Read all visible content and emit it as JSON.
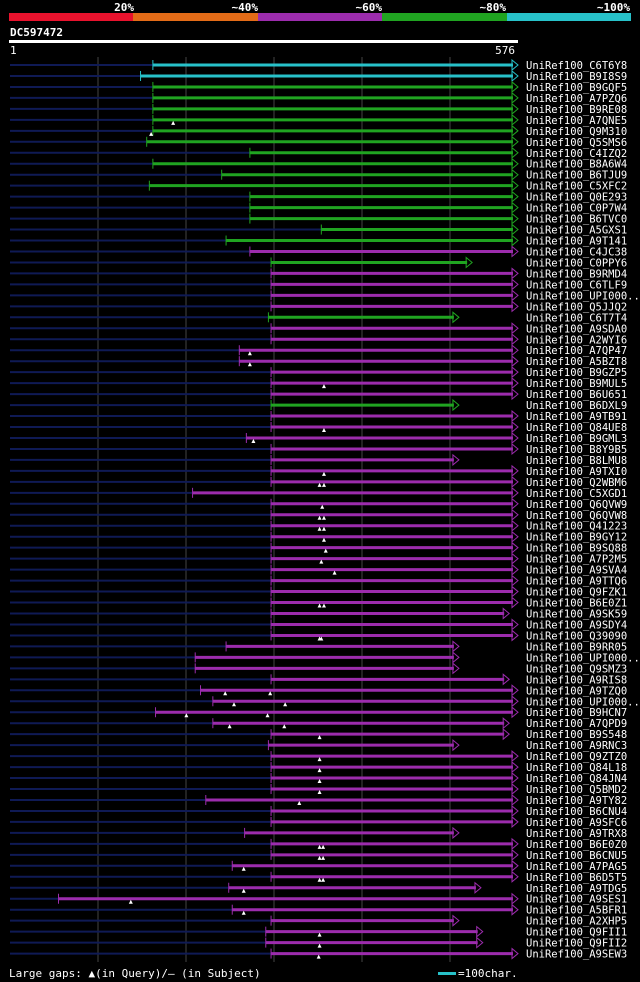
{
  "legend": {
    "colors": [
      "#e8122d",
      "#e36b17",
      "#9c2cad",
      "#20a421",
      "#27c1c9"
    ],
    "labels": [
      "20%",
      "~40%",
      "~60%",
      "~80%",
      "~100%"
    ]
  },
  "query": {
    "id": "DC597472",
    "start_label": "1",
    "end_label": "576"
  },
  "footer": {
    "gaps_text": "Large gaps: ▲(in Query)/— (in Subject)",
    "scale_text": "=100char."
  },
  "chart_data": {
    "type": "alignment",
    "query_length": 576,
    "colors": {
      "cyan": "#27c1c9",
      "green": "#20a421",
      "purple": "#9c2cad",
      "subject": "#0f1a55"
    },
    "hits": [
      {
        "name": "UniRef100_C6T6Y8",
        "color": "cyan",
        "q": [
          162,
          576
        ],
        "s0": 0,
        "qgaps": []
      },
      {
        "name": "UniRef100_B9I8S9",
        "color": "cyan",
        "q": [
          148,
          576
        ],
        "s0": 0,
        "qgaps": []
      },
      {
        "name": "UniRef100_B9GQF5",
        "color": "green",
        "q": [
          162,
          576
        ],
        "s0": 0,
        "qgaps": []
      },
      {
        "name": "UniRef100_A7PZQ6",
        "color": "green",
        "q": [
          162,
          576
        ],
        "s0": 0,
        "qgaps": []
      },
      {
        "name": "UniRef100_B9RE08",
        "color": "green",
        "q": [
          162,
          576
        ],
        "s0": 0,
        "qgaps": []
      },
      {
        "name": "UniRef100_A7QNE5",
        "color": "green",
        "q": [
          162,
          576
        ],
        "s0": 0,
        "qgaps": [
          185
        ]
      },
      {
        "name": "UniRef100_Q9M310",
        "color": "green",
        "q": [
          162,
          576
        ],
        "s0": 0,
        "qgaps": [
          160
        ]
      },
      {
        "name": "UniRef100_Q5SMS6",
        "color": "green",
        "q": [
          155,
          576
        ],
        "s0": 0,
        "qgaps": []
      },
      {
        "name": "UniRef100_C4IZQ2",
        "color": "green",
        "q": [
          272,
          576
        ],
        "s0": 0,
        "qgaps": []
      },
      {
        "name": "UniRef100_B8A6W4",
        "color": "green",
        "q": [
          162,
          576
        ],
        "s0": 0,
        "qgaps": []
      },
      {
        "name": "UniRef100_B6TJU9",
        "color": "green",
        "q": [
          240,
          576
        ],
        "s0": 0,
        "qgaps": []
      },
      {
        "name": "UniRef100_C5XFC2",
        "color": "green",
        "q": [
          158,
          576
        ],
        "s0": 0,
        "qgaps": []
      },
      {
        "name": "UniRef100_Q0E293",
        "color": "green",
        "q": [
          272,
          576
        ],
        "s0": 0,
        "qgaps": []
      },
      {
        "name": "UniRef100_C0P7W4",
        "color": "green",
        "q": [
          272,
          576
        ],
        "s0": 0,
        "qgaps": []
      },
      {
        "name": "UniRef100_B6TVC0",
        "color": "green",
        "q": [
          272,
          576
        ],
        "s0": 0,
        "qgaps": []
      },
      {
        "name": "UniRef100_A5GXS1",
        "color": "green",
        "q": [
          353,
          576
        ],
        "s0": 0,
        "qgaps": []
      },
      {
        "name": "UniRef100_A9T141",
        "color": "green",
        "q": [
          245,
          576
        ],
        "s0": 0,
        "qgaps": []
      },
      {
        "name": "UniRef100_C4JC38",
        "color": "purple",
        "q": [
          272,
          576
        ],
        "s0": 0,
        "qgaps": []
      },
      {
        "name": "UniRef100_C0PPY6",
        "color": "green",
        "q": [
          296,
          524
        ],
        "s0": 0,
        "qgaps": []
      },
      {
        "name": "UniRef100_B9RMD4",
        "color": "purple",
        "q": [
          296,
          576
        ],
        "s0": 0,
        "qgaps": []
      },
      {
        "name": "UniRef100_C6TLF9",
        "color": "purple",
        "q": [
          296,
          576
        ],
        "s0": 0,
        "qgaps": []
      },
      {
        "name": "UniRef100_UPI000..",
        "color": "purple",
        "q": [
          296,
          576
        ],
        "s0": 0,
        "qgaps": []
      },
      {
        "name": "UniRef100_Q5JJQ2",
        "color": "purple",
        "q": [
          296,
          576
        ],
        "s0": 0,
        "qgaps": []
      },
      {
        "name": "UniRef100_C6T7T4",
        "color": "green",
        "q": [
          293,
          509
        ],
        "s0": 0,
        "qgaps": []
      },
      {
        "name": "UniRef100_A9SDA0",
        "color": "purple",
        "q": [
          296,
          576
        ],
        "s0": 0,
        "qgaps": []
      },
      {
        "name": "UniRef100_A2WYI6",
        "color": "purple",
        "q": [
          296,
          576
        ],
        "s0": 0,
        "qgaps": []
      },
      {
        "name": "UniRef100_A7QP47",
        "color": "purple",
        "q": [
          260,
          576
        ],
        "s0": 0,
        "qgaps": [
          272
        ]
      },
      {
        "name": "UniRef100_A5BZT8",
        "color": "purple",
        "q": [
          260,
          576
        ],
        "s0": 0,
        "qgaps": [
          272
        ]
      },
      {
        "name": "UniRef100_B9GZP5",
        "color": "purple",
        "q": [
          296,
          576
        ],
        "s0": 0,
        "qgaps": []
      },
      {
        "name": "UniRef100_B9MUL5",
        "color": "purple",
        "q": [
          296,
          576
        ],
        "s0": 0,
        "qgaps": [
          356
        ]
      },
      {
        "name": "UniRef100_B6U651",
        "color": "purple",
        "q": [
          296,
          576
        ],
        "s0": 0,
        "qgaps": []
      },
      {
        "name": "UniRef100_B6DXL9",
        "color": "green",
        "q": [
          296,
          509
        ],
        "s0": 0,
        "qgaps": []
      },
      {
        "name": "UniRef100_A9TB91",
        "color": "purple",
        "q": [
          296,
          576
        ],
        "s0": 0,
        "qgaps": []
      },
      {
        "name": "UniRef100_Q84UE8",
        "color": "purple",
        "q": [
          296,
          576
        ],
        "s0": 0,
        "qgaps": [
          356
        ]
      },
      {
        "name": "UniRef100_B9GML3",
        "color": "purple",
        "q": [
          268,
          576
        ],
        "s0": 0,
        "qgaps": [
          276
        ]
      },
      {
        "name": "UniRef100_B8Y9B5",
        "color": "purple",
        "q": [
          296,
          576
        ],
        "s0": 0,
        "qgaps": []
      },
      {
        "name": "UniRef100_B8LMU8",
        "color": "purple",
        "q": [
          296,
          509
        ],
        "s0": 0,
        "qgaps": []
      },
      {
        "name": "UniRef100_A9TXI0",
        "color": "purple",
        "q": [
          296,
          576
        ],
        "s0": 0,
        "qgaps": [
          356
        ]
      },
      {
        "name": "UniRef100_Q2WBM6",
        "color": "purple",
        "q": [
          296,
          576
        ],
        "s0": 0,
        "qgaps": [
          351,
          356
        ]
      },
      {
        "name": "UniRef100_C5XGD1",
        "color": "purple",
        "q": [
          207,
          576
        ],
        "s0": 0,
        "qgaps": []
      },
      {
        "name": "UniRef100_Q6QVW9",
        "color": "purple",
        "q": [
          296,
          576
        ],
        "s0": 0,
        "qgaps": [
          354
        ]
      },
      {
        "name": "UniRef100_Q6QVW8",
        "color": "purple",
        "q": [
          296,
          576
        ],
        "s0": 0,
        "qgaps": [
          351,
          356
        ]
      },
      {
        "name": "UniRef100_Q41223",
        "color": "purple",
        "q": [
          296,
          576
        ],
        "s0": 0,
        "qgaps": [
          351,
          356
        ]
      },
      {
        "name": "UniRef100_B9GY12",
        "color": "purple",
        "q": [
          296,
          576
        ],
        "s0": 0,
        "qgaps": [
          356
        ]
      },
      {
        "name": "UniRef100_B9SQ88",
        "color": "purple",
        "q": [
          296,
          576
        ],
        "s0": 0,
        "qgaps": [
          358
        ]
      },
      {
        "name": "UniRef100_A7P2M5",
        "color": "purple",
        "q": [
          296,
          576
        ],
        "s0": 0,
        "qgaps": [
          353
        ]
      },
      {
        "name": "UniRef100_A9SVA4",
        "color": "purple",
        "q": [
          296,
          576
        ],
        "s0": 0,
        "qgaps": [
          368
        ]
      },
      {
        "name": "UniRef100_A9TTQ6",
        "color": "purple",
        "q": [
          296,
          576
        ],
        "s0": 0,
        "qgaps": []
      },
      {
        "name": "UniRef100_Q9FZK1",
        "color": "purple",
        "q": [
          296,
          576
        ],
        "s0": 0,
        "qgaps": []
      },
      {
        "name": "UniRef100_B6E0Z1",
        "color": "purple",
        "q": [
          296,
          576
        ],
        "s0": 0,
        "qgaps": [
          351,
          356
        ]
      },
      {
        "name": "UniRef100_A9SK59",
        "color": "purple",
        "q": [
          296,
          566
        ],
        "s0": 0,
        "qgaps": []
      },
      {
        "name": "UniRef100_A9SDY4",
        "color": "purple",
        "q": [
          296,
          576
        ],
        "s0": 0,
        "qgaps": []
      },
      {
        "name": "UniRef100_Q39090",
        "color": "purple",
        "q": [
          296,
          576
        ],
        "s0": 0,
        "qgaps": [
          351,
          353
        ]
      },
      {
        "name": "UniRef100_B9RR05",
        "color": "purple",
        "q": [
          245,
          509
        ],
        "s0": 0,
        "qgaps": []
      },
      {
        "name": "UniRef100_UPI000..",
        "color": "purple",
        "q": [
          210,
          509
        ],
        "s0": 0,
        "qgaps": []
      },
      {
        "name": "UniRef100_Q9SMZ3",
        "color": "purple",
        "q": [
          210,
          509
        ],
        "s0": 0,
        "qgaps": []
      },
      {
        "name": "UniRef100_A9RIS8",
        "color": "purple",
        "q": [
          296,
          566
        ],
        "s0": 0,
        "qgaps": []
      },
      {
        "name": "UniRef100_A9TZQ0",
        "color": "purple",
        "q": [
          216,
          576
        ],
        "s0": 0,
        "qgaps": [
          244,
          295
        ]
      },
      {
        "name": "UniRef100_UPI000..",
        "color": "purple",
        "q": [
          230,
          576
        ],
        "s0": 0,
        "qgaps": [
          254,
          312
        ]
      },
      {
        "name": "UniRef100_B9HCN7",
        "color": "purple",
        "q": [
          165,
          576
        ],
        "s0": 0,
        "qgaps": [
          200,
          292
        ]
      },
      {
        "name": "UniRef100_A7QPD9",
        "color": "purple",
        "q": [
          230,
          566
        ],
        "s0": 0,
        "qgaps": [
          249,
          311
        ]
      },
      {
        "name": "UniRef100_B9S548",
        "color": "purple",
        "q": [
          296,
          566
        ],
        "s0": 0,
        "qgaps": [
          351
        ]
      },
      {
        "name": "UniRef100_A9RNC3",
        "color": "purple",
        "q": [
          293,
          509
        ],
        "s0": 0,
        "qgaps": []
      },
      {
        "name": "UniRef100_Q9ZTZ0",
        "color": "purple",
        "q": [
          296,
          576
        ],
        "s0": 0,
        "qgaps": [
          351
        ]
      },
      {
        "name": "UniRef100_Q84L18",
        "color": "purple",
        "q": [
          296,
          576
        ],
        "s0": 0,
        "qgaps": [
          351
        ]
      },
      {
        "name": "UniRef100_Q84JN4",
        "color": "purple",
        "q": [
          296,
          576
        ],
        "s0": 0,
        "qgaps": [
          351
        ]
      },
      {
        "name": "UniRef100_Q5BMD2",
        "color": "purple",
        "q": [
          296,
          576
        ],
        "s0": 0,
        "qgaps": [
          351
        ]
      },
      {
        "name": "UniRef100_A9TY82",
        "color": "purple",
        "q": [
          222,
          576
        ],
        "s0": 0,
        "qgaps": [
          328
        ]
      },
      {
        "name": "UniRef100_B6CNU4",
        "color": "purple",
        "q": [
          296,
          576
        ],
        "s0": 0,
        "qgaps": []
      },
      {
        "name": "UniRef100_A9SFC6",
        "color": "purple",
        "q": [
          296,
          576
        ],
        "s0": 0,
        "qgaps": []
      },
      {
        "name": "UniRef100_A9TRX8",
        "color": "purple",
        "q": [
          266,
          509
        ],
        "s0": 0,
        "qgaps": []
      },
      {
        "name": "UniRef100_B6E0Z0",
        "color": "purple",
        "q": [
          296,
          576
        ],
        "s0": 0,
        "qgaps": [
          351,
          355
        ]
      },
      {
        "name": "UniRef100_B6CNU5",
        "color": "purple",
        "q": [
          296,
          576
        ],
        "s0": 0,
        "qgaps": [
          351,
          355
        ]
      },
      {
        "name": "UniRef100_A7PAG5",
        "color": "purple",
        "q": [
          252,
          576
        ],
        "s0": 0,
        "qgaps": [
          265
        ]
      },
      {
        "name": "UniRef100_B6D5T5",
        "color": "purple",
        "q": [
          296,
          576
        ],
        "s0": 0,
        "qgaps": [
          351,
          355
        ]
      },
      {
        "name": "UniRef100_A9TDG5",
        "color": "purple",
        "q": [
          248,
          534
        ],
        "s0": 0,
        "qgaps": [
          265
        ]
      },
      {
        "name": "UniRef100_A9SES1",
        "color": "purple",
        "q": [
          55,
          576
        ],
        "s0": 0,
        "qgaps": [
          137
        ]
      },
      {
        "name": "UniRef100_A5BFR1",
        "color": "purple",
        "q": [
          252,
          576
        ],
        "s0": 0,
        "qgaps": [
          265
        ]
      },
      {
        "name": "UniRef100_A2XHP5",
        "color": "purple",
        "q": [
          296,
          509
        ],
        "s0": 0,
        "qgaps": []
      },
      {
        "name": "UniRef100_Q9FII1",
        "color": "purple",
        "q": [
          290,
          536
        ],
        "s0": 0,
        "qgaps": [
          351
        ]
      },
      {
        "name": "UniRef100_Q9FII2",
        "color": "purple",
        "q": [
          290,
          536
        ],
        "s0": 0,
        "qgaps": [
          351
        ]
      },
      {
        "name": "UniRef100_A9SEW3",
        "color": "purple",
        "q": [
          296,
          576
        ],
        "s0": 0,
        "qgaps": [
          350
        ]
      }
    ]
  }
}
